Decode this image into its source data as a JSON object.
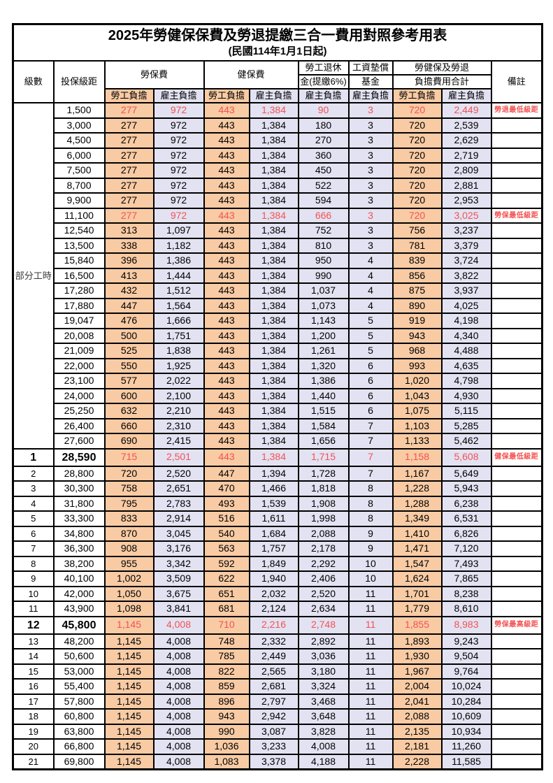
{
  "title": "2025年勞健保保費及勞退提繳三合一費用對照參考用表",
  "subtitle": "(民國114年1月1日起)",
  "colors": {
    "employee_bg": "#F8CBA4",
    "employer_bg": "#E2E2F2",
    "red_text": "#F45151",
    "border": "#000000"
  },
  "header": {
    "level": "級數",
    "bracket": "投保級距",
    "labor_insurance": "勞保費",
    "health_insurance": "健保費",
    "pension_line1": "勞工退休",
    "pension_line2": "金(提繳6%)",
    "wage_fund_line1": "工資墊償",
    "wage_fund_line2": "基金",
    "total_line1": "勞健保及勞退",
    "total_line2": "負擔費用合計",
    "remark": "備註",
    "employee": "勞工負擔",
    "employer": "雇主負擔"
  },
  "part_time": {
    "label": "部分工時",
    "rows": 23
  },
  "rows": [
    {
      "level": "",
      "bracket": "1,500",
      "cells": [
        "277",
        "972",
        "443",
        "1,384",
        "90",
        "3",
        "720",
        "2,449"
      ],
      "remark": "勞退最低級距",
      "red": true,
      "em": false
    },
    {
      "level": "",
      "bracket": "3,000",
      "cells": [
        "277",
        "972",
        "443",
        "1,384",
        "180",
        "3",
        "720",
        "2,539"
      ],
      "remark": "",
      "red": false,
      "em": false
    },
    {
      "level": "",
      "bracket": "4,500",
      "cells": [
        "277",
        "972",
        "443",
        "1,384",
        "270",
        "3",
        "720",
        "2,629"
      ],
      "remark": "",
      "red": false,
      "em": false
    },
    {
      "level": "",
      "bracket": "6,000",
      "cells": [
        "277",
        "972",
        "443",
        "1,384",
        "360",
        "3",
        "720",
        "2,719"
      ],
      "remark": "",
      "red": false,
      "em": false
    },
    {
      "level": "",
      "bracket": "7,500",
      "cells": [
        "277",
        "972",
        "443",
        "1,384",
        "450",
        "3",
        "720",
        "2,809"
      ],
      "remark": "",
      "red": false,
      "em": false
    },
    {
      "level": "",
      "bracket": "8,700",
      "cells": [
        "277",
        "972",
        "443",
        "1,384",
        "522",
        "3",
        "720",
        "2,881"
      ],
      "remark": "",
      "red": false,
      "em": false
    },
    {
      "level": "",
      "bracket": "9,900",
      "cells": [
        "277",
        "972",
        "443",
        "1,384",
        "594",
        "3",
        "720",
        "2,953"
      ],
      "remark": "",
      "red": false,
      "em": false
    },
    {
      "level": "",
      "bracket": "11,100",
      "cells": [
        "277",
        "972",
        "443",
        "1,384",
        "666",
        "3",
        "720",
        "3,025"
      ],
      "remark": "勞保最低級距",
      "red": true,
      "em": false
    },
    {
      "level": "",
      "bracket": "12,540",
      "cells": [
        "313",
        "1,097",
        "443",
        "1,384",
        "752",
        "3",
        "756",
        "3,237"
      ],
      "remark": "",
      "red": false,
      "em": false
    },
    {
      "level": "",
      "bracket": "13,500",
      "cells": [
        "338",
        "1,182",
        "443",
        "1,384",
        "810",
        "3",
        "781",
        "3,379"
      ],
      "remark": "",
      "red": false,
      "em": false
    },
    {
      "level": "",
      "bracket": "15,840",
      "cells": [
        "396",
        "1,386",
        "443",
        "1,384",
        "950",
        "4",
        "839",
        "3,724"
      ],
      "remark": "",
      "red": false,
      "em": false
    },
    {
      "level": "",
      "bracket": "16,500",
      "cells": [
        "413",
        "1,444",
        "443",
        "1,384",
        "990",
        "4",
        "856",
        "3,822"
      ],
      "remark": "",
      "red": false,
      "em": false
    },
    {
      "level": "",
      "bracket": "17,280",
      "cells": [
        "432",
        "1,512",
        "443",
        "1,384",
        "1,037",
        "4",
        "875",
        "3,937"
      ],
      "remark": "",
      "red": false,
      "em": false
    },
    {
      "level": "",
      "bracket": "17,880",
      "cells": [
        "447",
        "1,564",
        "443",
        "1,384",
        "1,073",
        "4",
        "890",
        "4,025"
      ],
      "remark": "",
      "red": false,
      "em": false
    },
    {
      "level": "",
      "bracket": "19,047",
      "cells": [
        "476",
        "1,666",
        "443",
        "1,384",
        "1,143",
        "5",
        "919",
        "4,198"
      ],
      "remark": "",
      "red": false,
      "em": false
    },
    {
      "level": "",
      "bracket": "20,008",
      "cells": [
        "500",
        "1,751",
        "443",
        "1,384",
        "1,200",
        "5",
        "943",
        "4,340"
      ],
      "remark": "",
      "red": false,
      "em": false
    },
    {
      "level": "",
      "bracket": "21,009",
      "cells": [
        "525",
        "1,838",
        "443",
        "1,384",
        "1,261",
        "5",
        "968",
        "4,488"
      ],
      "remark": "",
      "red": false,
      "em": false
    },
    {
      "level": "",
      "bracket": "22,000",
      "cells": [
        "550",
        "1,925",
        "443",
        "1,384",
        "1,320",
        "6",
        "993",
        "4,635"
      ],
      "remark": "",
      "red": false,
      "em": false
    },
    {
      "level": "",
      "bracket": "23,100",
      "cells": [
        "577",
        "2,022",
        "443",
        "1,384",
        "1,386",
        "6",
        "1,020",
        "4,798"
      ],
      "remark": "",
      "red": false,
      "em": false
    },
    {
      "level": "",
      "bracket": "24,000",
      "cells": [
        "600",
        "2,100",
        "443",
        "1,384",
        "1,440",
        "6",
        "1,043",
        "4,930"
      ],
      "remark": "",
      "red": false,
      "em": false
    },
    {
      "level": "",
      "bracket": "25,250",
      "cells": [
        "632",
        "2,210",
        "443",
        "1,384",
        "1,515",
        "6",
        "1,075",
        "5,115"
      ],
      "remark": "",
      "red": false,
      "em": false
    },
    {
      "level": "",
      "bracket": "26,400",
      "cells": [
        "660",
        "2,310",
        "443",
        "1,384",
        "1,584",
        "7",
        "1,103",
        "5,285"
      ],
      "remark": "",
      "red": false,
      "em": false
    },
    {
      "level": "",
      "bracket": "27,600",
      "cells": [
        "690",
        "2,415",
        "443",
        "1,384",
        "1,656",
        "7",
        "1,133",
        "5,462"
      ],
      "remark": "",
      "red": false,
      "em": false
    },
    {
      "level": "1",
      "bracket": "28,590",
      "cells": [
        "715",
        "2,501",
        "443",
        "1,384",
        "1,715",
        "7",
        "1,158",
        "5,608"
      ],
      "remark": "健保最低級距",
      "red": true,
      "em": true
    },
    {
      "level": "2",
      "bracket": "28,800",
      "cells": [
        "720",
        "2,520",
        "447",
        "1,394",
        "1,728",
        "7",
        "1,167",
        "5,649"
      ],
      "remark": "",
      "red": false,
      "em": false
    },
    {
      "level": "3",
      "bracket": "30,300",
      "cells": [
        "758",
        "2,651",
        "470",
        "1,466",
        "1,818",
        "8",
        "1,228",
        "5,943"
      ],
      "remark": "",
      "red": false,
      "em": false
    },
    {
      "level": "4",
      "bracket": "31,800",
      "cells": [
        "795",
        "2,783",
        "493",
        "1,539",
        "1,908",
        "8",
        "1,288",
        "6,238"
      ],
      "remark": "",
      "red": false,
      "em": false
    },
    {
      "level": "5",
      "bracket": "33,300",
      "cells": [
        "833",
        "2,914",
        "516",
        "1,611",
        "1,998",
        "8",
        "1,349",
        "6,531"
      ],
      "remark": "",
      "red": false,
      "em": false
    },
    {
      "level": "6",
      "bracket": "34,800",
      "cells": [
        "870",
        "3,045",
        "540",
        "1,684",
        "2,088",
        "9",
        "1,410",
        "6,826"
      ],
      "remark": "",
      "red": false,
      "em": false
    },
    {
      "level": "7",
      "bracket": "36,300",
      "cells": [
        "908",
        "3,176",
        "563",
        "1,757",
        "2,178",
        "9",
        "1,471",
        "7,120"
      ],
      "remark": "",
      "red": false,
      "em": false
    },
    {
      "level": "8",
      "bracket": "38,200",
      "cells": [
        "955",
        "3,342",
        "592",
        "1,849",
        "2,292",
        "10",
        "1,547",
        "7,493"
      ],
      "remark": "",
      "red": false,
      "em": false
    },
    {
      "level": "9",
      "bracket": "40,100",
      "cells": [
        "1,002",
        "3,509",
        "622",
        "1,940",
        "2,406",
        "10",
        "1,624",
        "7,865"
      ],
      "remark": "",
      "red": false,
      "em": false
    },
    {
      "level": "10",
      "bracket": "42,000",
      "cells": [
        "1,050",
        "3,675",
        "651",
        "2,032",
        "2,520",
        "11",
        "1,701",
        "8,238"
      ],
      "remark": "",
      "red": false,
      "em": false
    },
    {
      "level": "11",
      "bracket": "43,900",
      "cells": [
        "1,098",
        "3,841",
        "681",
        "2,124",
        "2,634",
        "11",
        "1,779",
        "8,610"
      ],
      "remark": "",
      "red": false,
      "em": false
    },
    {
      "level": "12",
      "bracket": "45,800",
      "cells": [
        "1,145",
        "4,008",
        "710",
        "2,216",
        "2,748",
        "11",
        "1,855",
        "8,983"
      ],
      "remark": "勞保最高級距",
      "red": true,
      "em": true
    },
    {
      "level": "13",
      "bracket": "48,200",
      "cells": [
        "1,145",
        "4,008",
        "748",
        "2,332",
        "2,892",
        "11",
        "1,893",
        "9,243"
      ],
      "remark": "",
      "red": false,
      "em": false
    },
    {
      "level": "14",
      "bracket": "50,600",
      "cells": [
        "1,145",
        "4,008",
        "785",
        "2,449",
        "3,036",
        "11",
        "1,930",
        "9,504"
      ],
      "remark": "",
      "red": false,
      "em": false
    },
    {
      "level": "15",
      "bracket": "53,000",
      "cells": [
        "1,145",
        "4,008",
        "822",
        "2,565",
        "3,180",
        "11",
        "1,967",
        "9,764"
      ],
      "remark": "",
      "red": false,
      "em": false
    },
    {
      "level": "16",
      "bracket": "55,400",
      "cells": [
        "1,145",
        "4,008",
        "859",
        "2,681",
        "3,324",
        "11",
        "2,004",
        "10,024"
      ],
      "remark": "",
      "red": false,
      "em": false
    },
    {
      "level": "17",
      "bracket": "57,800",
      "cells": [
        "1,145",
        "4,008",
        "896",
        "2,797",
        "3,468",
        "11",
        "2,041",
        "10,284"
      ],
      "remark": "",
      "red": false,
      "em": false
    },
    {
      "level": "18",
      "bracket": "60,800",
      "cells": [
        "1,145",
        "4,008",
        "943",
        "2,942",
        "3,648",
        "11",
        "2,088",
        "10,609"
      ],
      "remark": "",
      "red": false,
      "em": false
    },
    {
      "level": "19",
      "bracket": "63,800",
      "cells": [
        "1,145",
        "4,008",
        "990",
        "3,087",
        "3,828",
        "11",
        "2,135",
        "10,934"
      ],
      "remark": "",
      "red": false,
      "em": false
    },
    {
      "level": "20",
      "bracket": "66,800",
      "cells": [
        "1,145",
        "4,008",
        "1,036",
        "3,233",
        "4,008",
        "11",
        "2,181",
        "11,260"
      ],
      "remark": "",
      "red": false,
      "em": false
    },
    {
      "level": "21",
      "bracket": "69,800",
      "cells": [
        "1,145",
        "4,008",
        "1,083",
        "3,378",
        "4,188",
        "11",
        "2,228",
        "11,585"
      ],
      "remark": "",
      "red": false,
      "em": false
    }
  ]
}
